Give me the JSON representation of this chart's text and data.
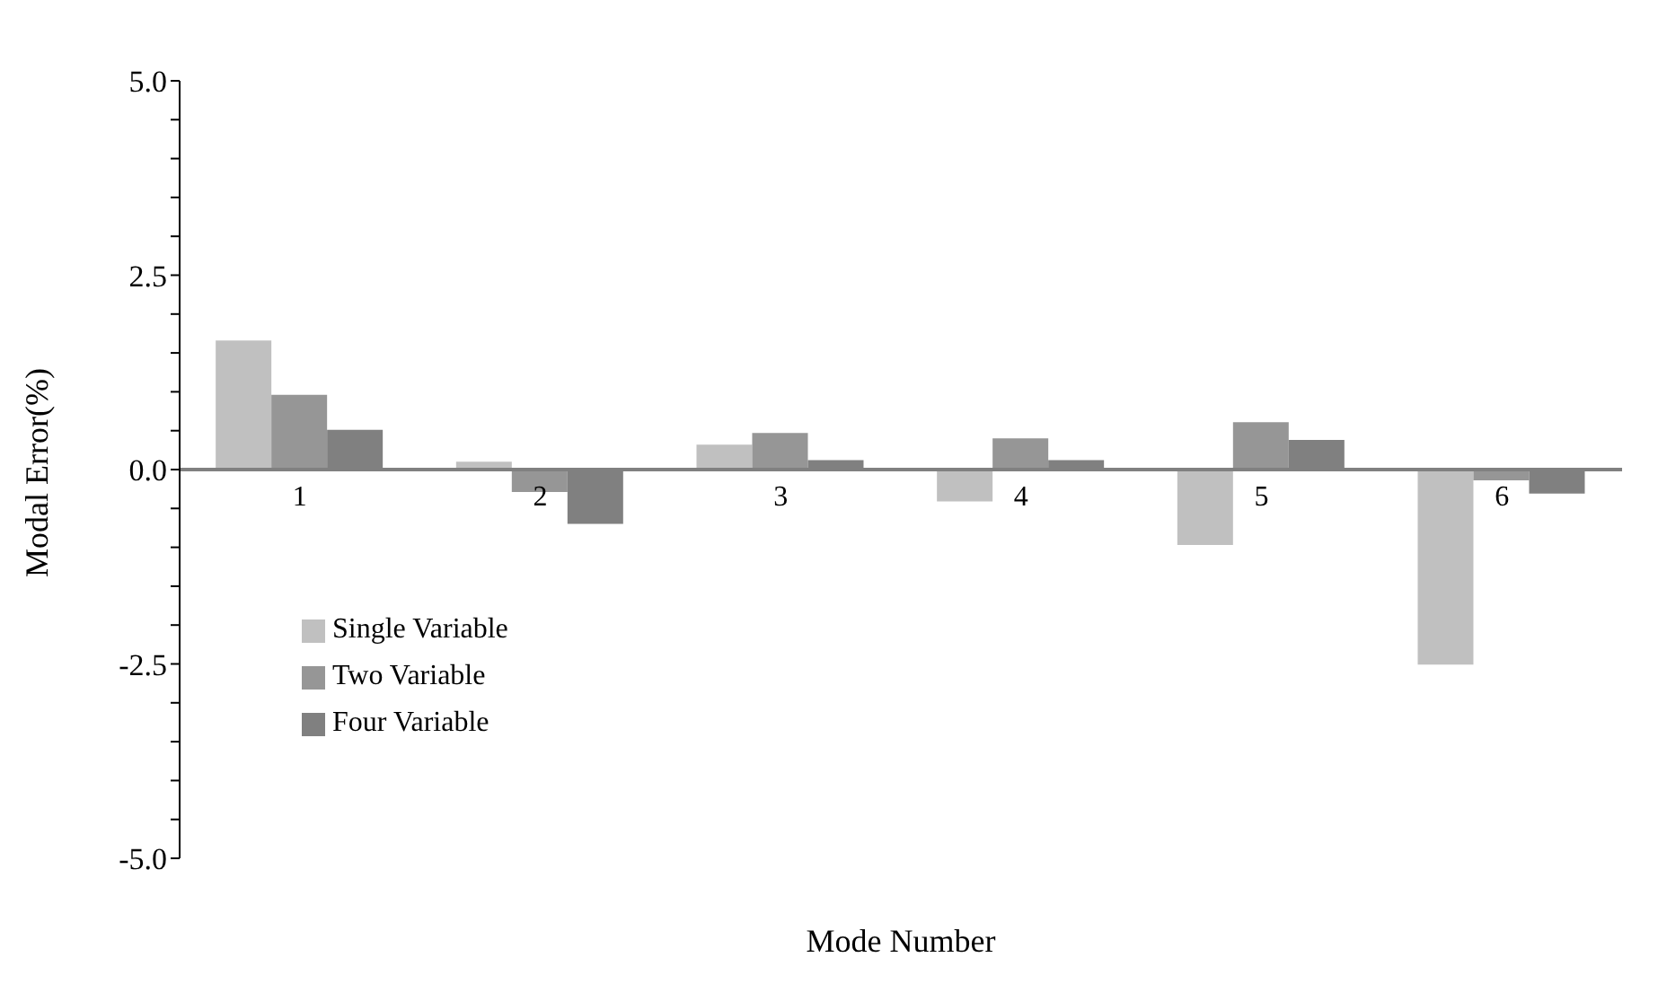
{
  "chart_data": {
    "type": "bar",
    "xlabel": "Mode Number",
    "ylabel": "Modal Error(%)",
    "categories": [
      "1",
      "2",
      "3",
      "4",
      "5",
      "6"
    ],
    "series": [
      {
        "name": "Single Variable",
        "color": "#c0c0c0",
        "values": [
          1.66,
          0.1,
          0.32,
          -0.41,
          -0.97,
          -2.51
        ]
      },
      {
        "name": "Two Variable",
        "color": "#969696",
        "values": [
          0.96,
          -0.29,
          0.47,
          0.4,
          0.61,
          -0.14
        ]
      },
      {
        "name": "Four Variable",
        "color": "#808080",
        "values": [
          0.51,
          -0.7,
          0.12,
          0.12,
          0.38,
          -0.31
        ]
      }
    ],
    "ylim": [
      -5,
      5
    ],
    "yticks": [
      {
        "value": -5,
        "label": "-5.0"
      },
      {
        "value": -4.5,
        "label": null
      },
      {
        "value": -4,
        "label": null
      },
      {
        "value": -3.5,
        "label": null
      },
      {
        "value": -3,
        "label": null
      },
      {
        "value": -2.5,
        "label": "-2.5"
      },
      {
        "value": -2,
        "label": null
      },
      {
        "value": -1.5,
        "label": null
      },
      {
        "value": -1,
        "label": null
      },
      {
        "value": -0.5,
        "label": null
      },
      {
        "value": 0,
        "label": "0.0"
      },
      {
        "value": 0.5,
        "label": null
      },
      {
        "value": 1,
        "label": null
      },
      {
        "value": 1.5,
        "label": null
      },
      {
        "value": 2,
        "label": null
      },
      {
        "value": 2.5,
        "label": "2.5"
      },
      {
        "value": 3,
        "label": null
      },
      {
        "value": 3.5,
        "label": null
      },
      {
        "value": 4,
        "label": null
      },
      {
        "value": 4.5,
        "label": null
      },
      {
        "value": 5,
        "label": "5.0"
      }
    ],
    "grid": false,
    "legend": "left"
  }
}
